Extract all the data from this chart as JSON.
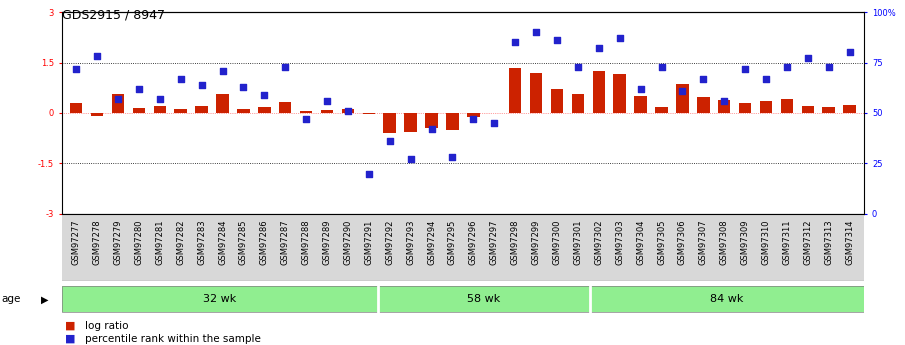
{
  "title": "GDS2915 / 8947",
  "samples": [
    "GSM97277",
    "GSM97278",
    "GSM97279",
    "GSM97280",
    "GSM97281",
    "GSM97282",
    "GSM97283",
    "GSM97284",
    "GSM97285",
    "GSM97286",
    "GSM97287",
    "GSM97288",
    "GSM97289",
    "GSM97290",
    "GSM97291",
    "GSM97292",
    "GSM97293",
    "GSM97294",
    "GSM97295",
    "GSM97296",
    "GSM97297",
    "GSM97298",
    "GSM97299",
    "GSM97300",
    "GSM97301",
    "GSM97302",
    "GSM97303",
    "GSM97304",
    "GSM97305",
    "GSM97306",
    "GSM97307",
    "GSM97308",
    "GSM97309",
    "GSM97310",
    "GSM97311",
    "GSM97312",
    "GSM97313",
    "GSM97314"
  ],
  "log_ratio": [
    0.3,
    -0.08,
    0.55,
    0.15,
    0.2,
    0.12,
    0.22,
    0.55,
    0.12,
    0.18,
    0.32,
    0.05,
    0.08,
    0.12,
    -0.02,
    -0.6,
    -0.58,
    -0.45,
    -0.5,
    -0.12,
    0.0,
    1.35,
    1.2,
    0.7,
    0.55,
    1.25,
    1.15,
    0.5,
    0.18,
    0.85,
    0.48,
    0.38,
    0.3,
    0.35,
    0.42,
    0.22,
    0.18,
    0.25
  ],
  "percentile": [
    72,
    78,
    57,
    62,
    57,
    67,
    64,
    71,
    63,
    59,
    73,
    47,
    56,
    51,
    20,
    36,
    27,
    42,
    28,
    47,
    45,
    85,
    90,
    86,
    73,
    82,
    87,
    62,
    73,
    61,
    67,
    56,
    72,
    67,
    73,
    77,
    73,
    80
  ],
  "groups": [
    {
      "label": "32 wk",
      "start": 0,
      "end": 15,
      "color": "#90ee90"
    },
    {
      "label": "58 wk",
      "start": 15,
      "end": 25,
      "color": "#90ee90"
    },
    {
      "label": "84 wk",
      "start": 25,
      "end": 38,
      "color": "#90ee90"
    }
  ],
  "group_border_color": "#ffffff",
  "ylim": [
    -3,
    3
  ],
  "y2lim": [
    0,
    100
  ],
  "yticks_left": [
    -3,
    -1.5,
    0,
    1.5,
    3
  ],
  "yticks_right": [
    0,
    25,
    50,
    75,
    100
  ],
  "ytick_labels_right": [
    "0",
    "25",
    "50",
    "75",
    "100%"
  ],
  "dotted_lines": [
    1.5,
    -1.5
  ],
  "zero_line_color": "#ff4444",
  "bar_color": "#cc2200",
  "dot_color": "#2222cc",
  "bg_color": "#ffffff",
  "plot_bg": "#ffffff",
  "xtick_bg": "#d8d8d8",
  "age_label": "age",
  "legend_bar": "log ratio",
  "legend_dot": "percentile rank within the sample",
  "title_fontsize": 9,
  "tick_fontsize": 6,
  "group_fontsize": 8,
  "legend_fontsize": 7.5
}
